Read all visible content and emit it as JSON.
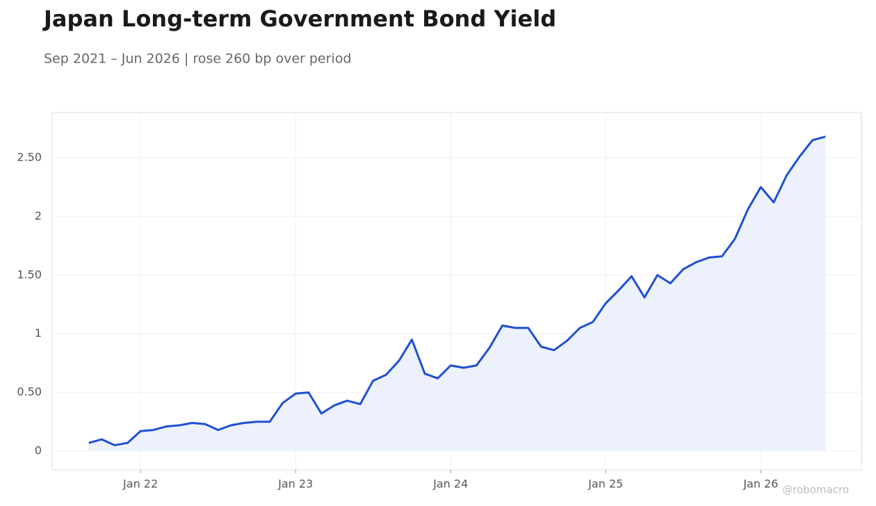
{
  "chart_data": {
    "type": "line",
    "title": "Japan Long-term Government Bond Yield",
    "subtitle": "Sep 2021 – Jun 2026 | rose 260 bp over period",
    "annotation": "@robomacro",
    "x": [
      "2021-09",
      "2021-10",
      "2021-11",
      "2021-12",
      "2022-01",
      "2022-02",
      "2022-03",
      "2022-04",
      "2022-05",
      "2022-06",
      "2022-07",
      "2022-08",
      "2022-09",
      "2022-10",
      "2022-11",
      "2022-12",
      "2023-01",
      "2023-02",
      "2023-03",
      "2023-04",
      "2023-05",
      "2023-06",
      "2023-07",
      "2023-08",
      "2023-09",
      "2023-10",
      "2023-11",
      "2023-12",
      "2024-01",
      "2024-02",
      "2024-03",
      "2024-04",
      "2024-05",
      "2024-06",
      "2024-07",
      "2024-08",
      "2024-09",
      "2024-10",
      "2024-11",
      "2024-12",
      "2025-01",
      "2025-02",
      "2025-03",
      "2025-04",
      "2025-05",
      "2025-06",
      "2025-07",
      "2025-08",
      "2025-09",
      "2025-10",
      "2025-11",
      "2025-12",
      "2026-01",
      "2026-02",
      "2026-03",
      "2026-04",
      "2026-05",
      "2026-06"
    ],
    "series": [
      {
        "name": "Yield",
        "color": "#1f4fd1",
        "fill": "#ebf0fb",
        "values": [
          0.07,
          0.1,
          0.05,
          0.07,
          0.17,
          0.18,
          0.21,
          0.22,
          0.24,
          0.23,
          0.18,
          0.22,
          0.24,
          0.25,
          0.25,
          0.41,
          0.49,
          0.5,
          0.32,
          0.39,
          0.43,
          0.4,
          0.6,
          0.65,
          0.77,
          0.95,
          0.66,
          0.62,
          0.73,
          0.71,
          0.73,
          0.88,
          1.07,
          1.05,
          1.05,
          0.89,
          0.86,
          0.94,
          1.05,
          1.1,
          1.26,
          1.37,
          1.49,
          1.31,
          1.5,
          1.43,
          1.55,
          1.61,
          1.65,
          1.66,
          1.81,
          2.06,
          2.25,
          2.12,
          2.35,
          2.51,
          2.65,
          2.68
        ]
      }
    ],
    "xlim": [
      "2021-06",
      "2026-09"
    ],
    "xticks": [
      {
        "value": "2022-01",
        "label": "Jan 22"
      },
      {
        "value": "2023-01",
        "label": "Jan 23"
      },
      {
        "value": "2024-01",
        "label": "Jan 24"
      },
      {
        "value": "2025-01",
        "label": "Jan 25"
      },
      {
        "value": "2026-01",
        "label": "Jan 26"
      }
    ],
    "ylim": [
      -0.16,
      2.885
    ],
    "yticks": [
      0,
      {
        "value": 0.5,
        "label": "0.50"
      },
      1,
      {
        "value": 1.5,
        "label": "1.50"
      },
      2,
      {
        "value": 2.5,
        "label": "2.50"
      }
    ],
    "grid": true
  }
}
